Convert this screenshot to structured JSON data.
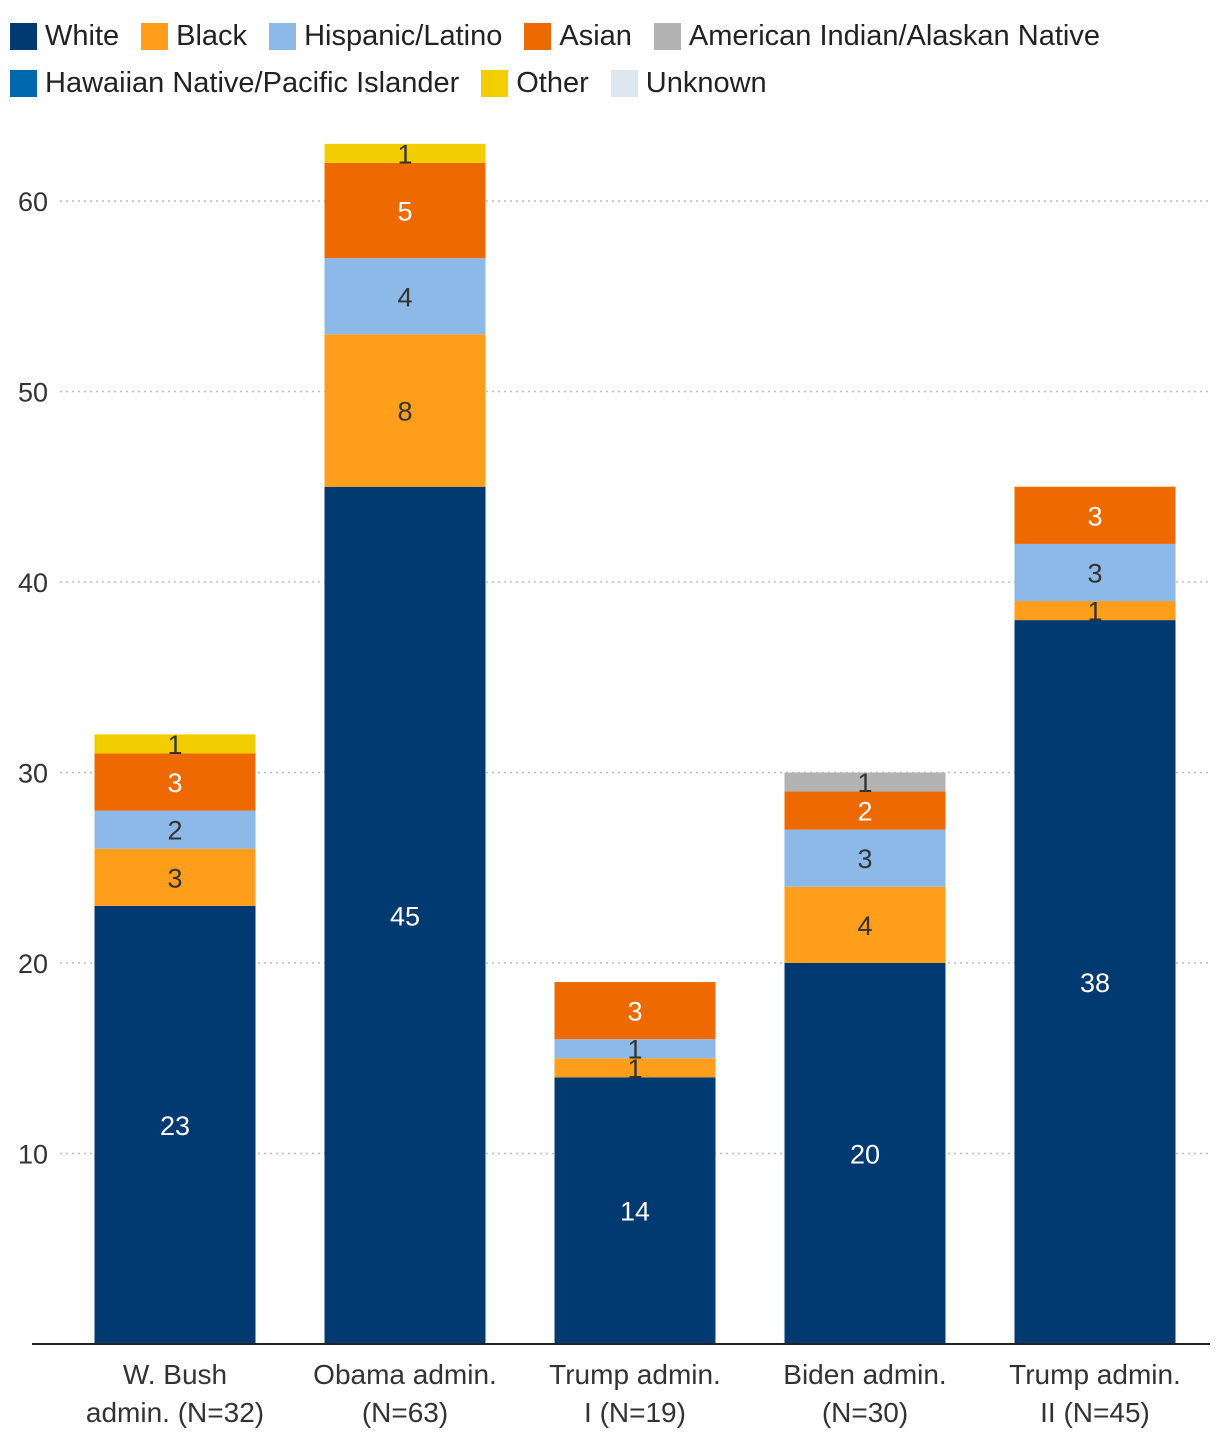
{
  "chart_data": {
    "type": "bar",
    "stacked": true,
    "title": "",
    "xlabel": "",
    "ylabel": "",
    "ylim": [
      0,
      63
    ],
    "yticks": [
      10,
      20,
      30,
      40,
      50,
      60
    ],
    "grid": true,
    "legend_position": "top",
    "categories": [
      "W. Bush admin. (N=32)",
      "Obama admin. (N=63)",
      "Trump admin. I (N=19)",
      "Biden admin. (N=30)",
      "Trump admin. II (N=45)"
    ],
    "category_lines": [
      [
        "W. Bush",
        "admin. (N=32)"
      ],
      [
        "Obama admin.",
        "(N=63)"
      ],
      [
        "Trump admin.",
        "I (N=19)"
      ],
      [
        "Biden admin.",
        "(N=30)"
      ],
      [
        "Trump admin.",
        "II (N=45)"
      ]
    ],
    "series": [
      {
        "name": "White",
        "color": "#003a70",
        "values": [
          23,
          45,
          14,
          20,
          38
        ]
      },
      {
        "name": "Black",
        "color": "#ff9e1b",
        "values": [
          3,
          8,
          1,
          4,
          1
        ]
      },
      {
        "name": "Hispanic/Latino",
        "color": "#8db9e8",
        "values": [
          2,
          4,
          1,
          3,
          3
        ]
      },
      {
        "name": "Asian",
        "color": "#ee6a00",
        "values": [
          3,
          5,
          3,
          2,
          3
        ]
      },
      {
        "name": "American Indian/Alaskan Native",
        "color": "#b3b3b3",
        "values": [
          0,
          0,
          0,
          1,
          0
        ]
      },
      {
        "name": "Hawaiian Native/Pacific Islander",
        "color": "#0068ad",
        "values": [
          0,
          0,
          0,
          0,
          0
        ]
      },
      {
        "name": "Other",
        "color": "#f2cd00",
        "values": [
          1,
          1,
          0,
          0,
          0
        ]
      },
      {
        "name": "Unknown",
        "color": "#dde5ee",
        "values": [
          0,
          0,
          0,
          0,
          0
        ]
      }
    ],
    "legend_rows": [
      [
        "White",
        "Black",
        "Hispanic/Latino",
        "Asian",
        "American Indian/Alaskan Native"
      ],
      [
        "Hawaiian Native/Pacific Islander",
        "Other",
        "Unknown"
      ]
    ]
  }
}
